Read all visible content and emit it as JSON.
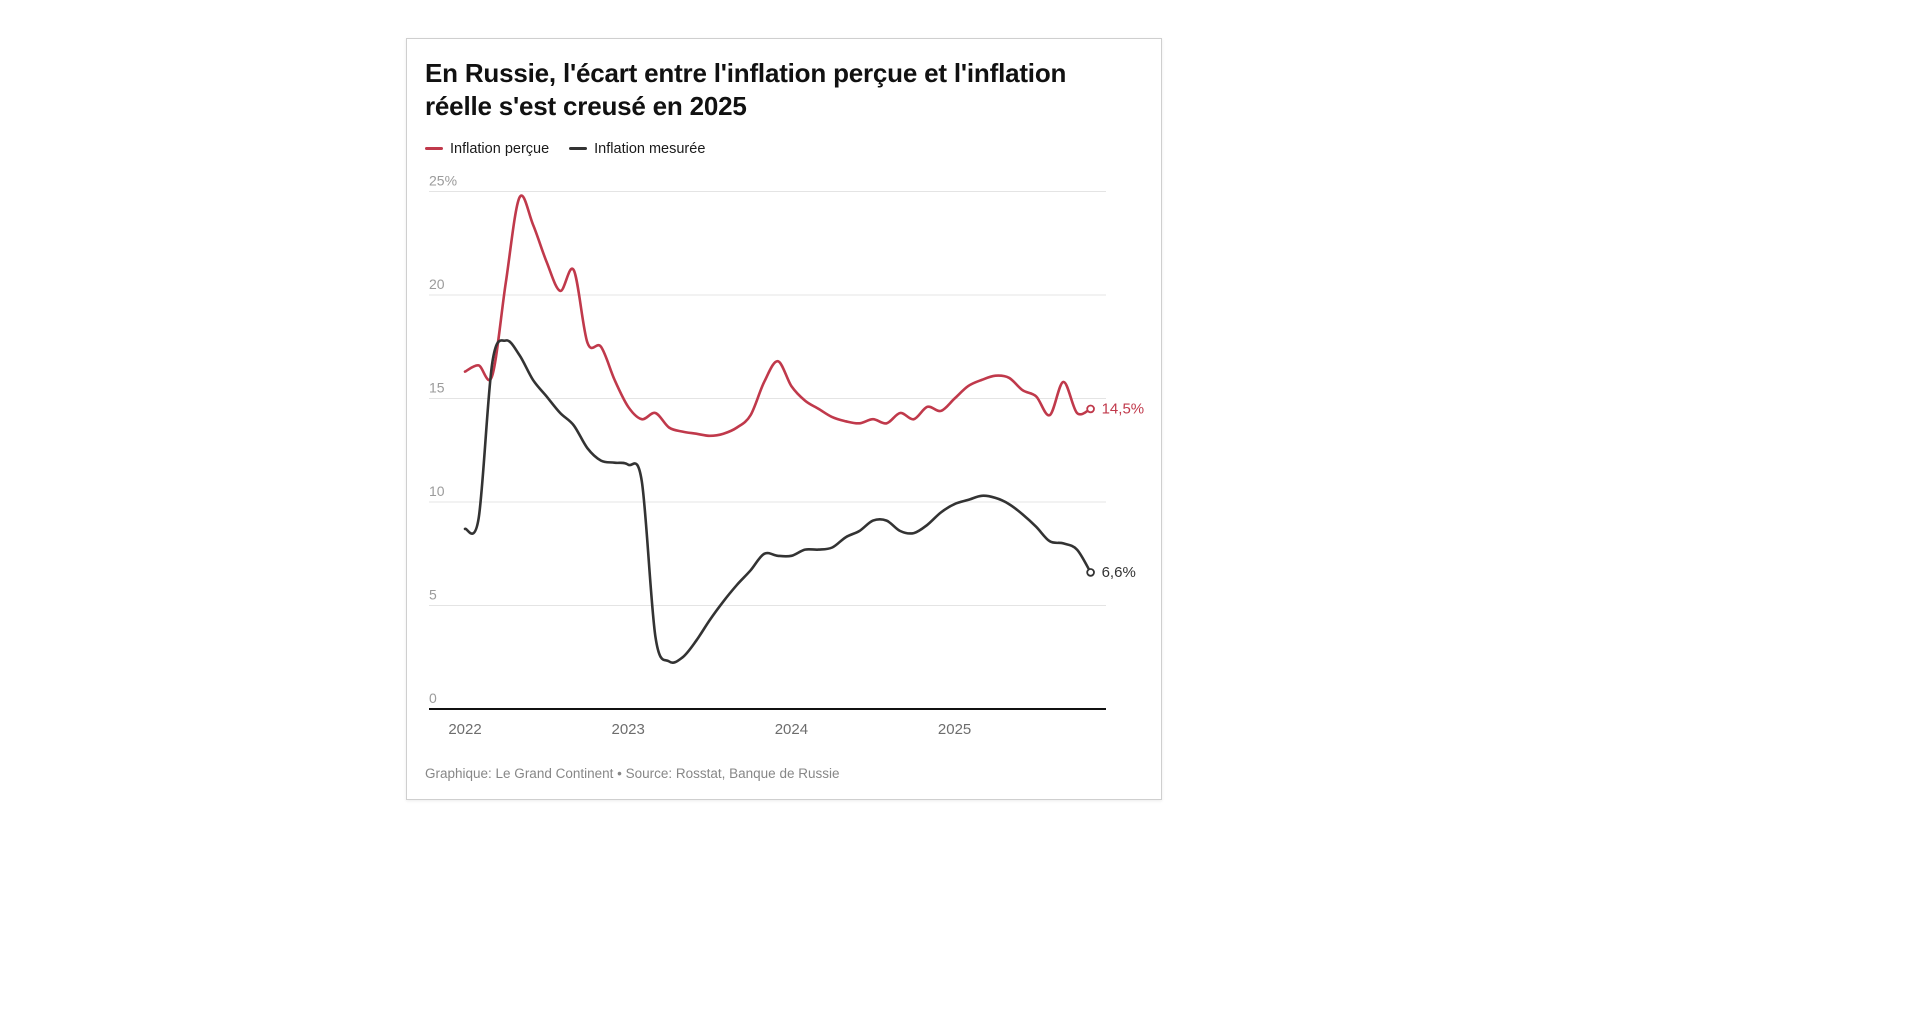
{
  "card": {
    "title": "En Russie, l'écart entre l'inflation perçue et l'inflation réelle s'est creusé en 2025",
    "footer": "Graphique: Le Grand Continent • Source: Rosstat, Banque de Russie"
  },
  "colors": {
    "perceived": "#c0394b",
    "measured": "#333333",
    "gridline": "#e4e4e4",
    "axis_baseline": "#111111",
    "y_tick_label": "#9b9b9b",
    "x_tick_label": "#6d6d6d"
  },
  "chart_data": {
    "type": "line",
    "title": "En Russie, l'écart entre l'inflation perçue et l'inflation réelle s'est creusé en 2025",
    "x_start": "2022-01",
    "x_frequency": "monthly",
    "x_tick_labels": [
      "2022",
      "2023",
      "2024",
      "2025"
    ],
    "y_ticks": [
      0,
      5,
      10,
      15,
      20,
      25
    ],
    "y_tick_top_label": "25%",
    "ylim": [
      0,
      26
    ],
    "grid": true,
    "legend_position": "top",
    "series": [
      {
        "name": "Inflation perçue",
        "color": "#c0394b",
        "end_label": "14,5%",
        "values": [
          16.3,
          16.6,
          16.1,
          20.6,
          24.7,
          23.4,
          21.6,
          20.2,
          21.2,
          17.7,
          17.5,
          15.9,
          14.6,
          14.0,
          14.3,
          13.6,
          13.4,
          13.3,
          13.2,
          13.3,
          13.6,
          14.2,
          15.8,
          16.8,
          15.6,
          14.9,
          14.5,
          14.1,
          13.9,
          13.8,
          14.0,
          13.8,
          14.3,
          14.0,
          14.6,
          14.4,
          15.0,
          15.6,
          15.9,
          16.1,
          16.0,
          15.4,
          15.1,
          14.2,
          15.8,
          14.3,
          14.5
        ]
      },
      {
        "name": "Inflation mesurée",
        "color": "#333333",
        "end_label": "6,6%",
        "values": [
          8.7,
          9.2,
          16.7,
          17.8,
          17.1,
          15.9,
          15.1,
          14.3,
          13.7,
          12.6,
          12.0,
          11.9,
          11.8,
          11.0,
          3.5,
          2.3,
          2.5,
          3.3,
          4.3,
          5.2,
          6.0,
          6.7,
          7.5,
          7.4,
          7.4,
          7.7,
          7.7,
          7.8,
          8.3,
          8.6,
          9.1,
          9.1,
          8.6,
          8.5,
          8.9,
          9.5,
          9.9,
          10.1,
          10.3,
          10.2,
          9.9,
          9.4,
          8.8,
          8.1,
          8.0,
          7.7,
          6.6
        ]
      }
    ]
  }
}
